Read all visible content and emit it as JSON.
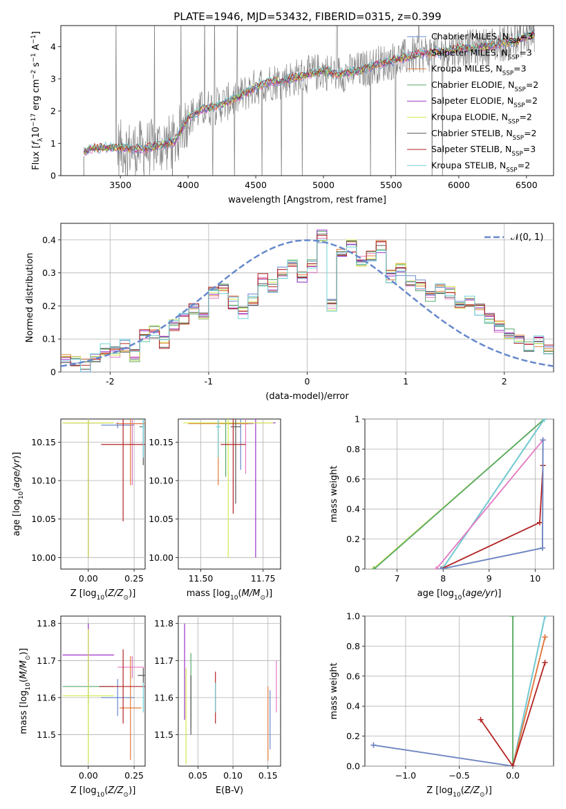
{
  "figure_title": "PLATE=1946, MJD=53432, FIBERID=0315, z=0.399",
  "legend_entries": [
    {
      "model": "Chabrier MILES",
      "n": "3",
      "color": "#6688cc"
    },
    {
      "model": "Salpeter MILES",
      "n": "3",
      "color": "#e377c2"
    },
    {
      "model": "Kroupa MILES",
      "n": "3",
      "color": "#e07b39"
    },
    {
      "model": "Chabrier ELODIE",
      "n": "2",
      "color": "#55a868"
    },
    {
      "model": "Salpeter ELODIE",
      "n": "2",
      "color": "#9b30c8"
    },
    {
      "model": "Kroupa ELODIE",
      "n": "2",
      "color": "#d4e84a"
    },
    {
      "model": "Chabrier STELIB",
      "n": "2",
      "color": "#555555"
    },
    {
      "model": "Salpeter STELIB",
      "n": "3",
      "color": "#b22222"
    },
    {
      "model": "Kroupa STELIB",
      "n": "2",
      "color": "#6fd0d8"
    }
  ],
  "legend_nssp_prefix": "N",
  "legend_nssp_sub": "SSP",
  "chart_data": [
    {
      "id": "spectrum",
      "type": "line",
      "xlabel": "wavelength [Angstrom, rest frame]",
      "ylabel": "Flux [f_λ 10^-17 erg cm^-2 s^-1 A^-1]",
      "xlim": [
        3060,
        6700
      ],
      "ylim": [
        0,
        4.65
      ],
      "xticks": [
        3500,
        4000,
        4500,
        5000,
        5500,
        6000,
        6500
      ],
      "yticks": [
        0,
        1,
        2,
        3,
        4
      ],
      "grid": false,
      "legend": "upper-right",
      "data_color": "#808080",
      "model_continuum": {
        "x": [
          3230,
          3300,
          3400,
          3500,
          3600,
          3700,
          3800,
          3900,
          4000,
          4100,
          4200,
          4300,
          4400,
          4500,
          4600,
          4700,
          4800,
          4900,
          5000,
          5100,
          5200,
          5300,
          5400,
          5500,
          5600,
          5700,
          5800,
          5900,
          6000,
          6100,
          6200,
          6300,
          6400,
          6500,
          6560
        ],
        "y": [
          0.75,
          0.85,
          0.88,
          0.85,
          0.82,
          0.85,
          0.95,
          1.05,
          1.8,
          2.05,
          2.15,
          2.3,
          2.5,
          2.75,
          2.9,
          2.95,
          3.05,
          3.15,
          3.25,
          3.15,
          3.2,
          3.3,
          3.45,
          3.55,
          3.65,
          3.75,
          3.8,
          3.85,
          3.95,
          3.95,
          4.0,
          4.1,
          4.15,
          4.3,
          4.4
        ]
      }
    },
    {
      "id": "residuals",
      "type": "step",
      "xlabel": "(data-model)/error",
      "ylabel": "Normed distribution",
      "xlim": [
        -2.5,
        2.5
      ],
      "ylim": [
        0,
        0.45
      ],
      "xticks": [
        -2,
        -1,
        0,
        1,
        2
      ],
      "yticks": [
        0.0,
        0.1,
        0.2,
        0.3,
        0.4
      ],
      "grid": true,
      "legend": "upper-right",
      "legend_label": "𝒩(0, 1)",
      "gaussian": {
        "mu": 0,
        "sigma": 1,
        "color": "#6688cc"
      },
      "bin_width": 0.1,
      "bin_start": -2.5,
      "hist": [
        0.04,
        0.03,
        0.02,
        0.05,
        0.07,
        0.06,
        0.08,
        0.05,
        0.11,
        0.12,
        0.09,
        0.14,
        0.16,
        0.19,
        0.18,
        0.24,
        0.25,
        0.21,
        0.18,
        0.22,
        0.28,
        0.26,
        0.3,
        0.33,
        0.29,
        0.32,
        0.41,
        0.2,
        0.36,
        0.38,
        0.34,
        0.35,
        0.38,
        0.29,
        0.31,
        0.28,
        0.26,
        0.23,
        0.25,
        0.24,
        0.2,
        0.21,
        0.19,
        0.16,
        0.14,
        0.12,
        0.1,
        0.08,
        0.09,
        0.07
      ]
    },
    {
      "id": "age_vs_Z",
      "type": "errorbar",
      "xlabel": "Z [log10(Z/Z☉)]",
      "ylabel": "age  [log10(age/yr)]",
      "xlim": [
        -0.15,
        0.31
      ],
      "ylim": [
        9.985,
        10.18
      ],
      "xticks": [
        0.0,
        0.25
      ],
      "xtick_labels": [
        "0.00",
        "0.25"
      ],
      "yticks": [
        10.0,
        10.05,
        10.1,
        10.15
      ],
      "yticks_labels": [
        "10.00",
        "10.05",
        "10.10",
        "10.15"
      ],
      "grid": true,
      "points": [
        {
          "model": "Chabrier MILES",
          "x": 0.16,
          "y": 10.172,
          "xerr": 0.09,
          "yerr": 0.004
        },
        {
          "model": "Salpeter MILES",
          "x": 0.24,
          "y": 10.174,
          "xerr": 0.07,
          "yerr": 0.08
        },
        {
          "model": "Kroupa MILES",
          "x": 0.23,
          "y": 10.174,
          "xerr": 0.08,
          "yerr": 0.08
        },
        {
          "model": "Chabrier ELODIE",
          "x": 0.0,
          "y": 10.175,
          "xerr": 0.12,
          "yerr": 0.175
        },
        {
          "model": "Salpeter ELODIE",
          "x": 0.0,
          "y": 10.175,
          "xerr": 0.14,
          "yerr": 0.175
        },
        {
          "model": "Kroupa ELODIE",
          "x": 0.0,
          "y": 10.175,
          "xerr": 0.14,
          "yerr": 0.175
        },
        {
          "model": "Chabrier STELIB",
          "x": 0.3,
          "y": 10.17,
          "xerr": 0.02,
          "yerr": 0.05
        },
        {
          "model": "Salpeter STELIB",
          "x": 0.19,
          "y": 10.147,
          "xerr": 0.12,
          "yerr": 0.1
        },
        {
          "model": "Kroupa STELIB",
          "x": 0.3,
          "y": 10.17,
          "xerr": 0.01,
          "yerr": 0.04
        }
      ]
    },
    {
      "id": "age_vs_mass",
      "type": "errorbar",
      "xlabel": "mass [log10(M/M☉)]",
      "ylabel": "",
      "xlim": [
        11.41,
        11.82
      ],
      "ylim": [
        9.985,
        10.18
      ],
      "xticks": [
        11.5,
        11.75
      ],
      "xtick_labels": [
        "11.50",
        "11.75"
      ],
      "yticks": [
        10.0,
        10.05,
        10.1,
        10.15
      ],
      "yticks_labels": [
        "10.00",
        "10.05",
        "10.10",
        "10.15"
      ],
      "grid": true,
      "points": [
        {
          "model": "Chabrier MILES",
          "x": 11.66,
          "y": 10.174,
          "xerr": 0.05,
          "yerr": 0.06
        },
        {
          "model": "Salpeter MILES",
          "x": 11.68,
          "y": 10.174,
          "xerr": 0.03,
          "yerr": 0.065
        },
        {
          "model": "Kroupa MILES",
          "x": 11.57,
          "y": 10.174,
          "xerr": 0.12,
          "yerr": 0.08
        },
        {
          "model": "Chabrier ELODIE",
          "x": 11.6,
          "y": 10.175,
          "xerr": 0.12,
          "yerr": 0.07
        },
        {
          "model": "Salpeter ELODIE",
          "x": 11.72,
          "y": 10.175,
          "xerr": 0.08,
          "yerr": 0.175
        },
        {
          "model": "Kroupa ELODIE",
          "x": 11.61,
          "y": 10.175,
          "xerr": 0.18,
          "yerr": 0.175
        },
        {
          "model": "Chabrier STELIB",
          "x": 11.64,
          "y": 10.17,
          "xerr": 0.02,
          "yerr": 0.1
        },
        {
          "model": "Salpeter STELIB",
          "x": 11.63,
          "y": 10.147,
          "xerr": 0.05,
          "yerr": 0.09
        },
        {
          "model": "Kroupa STELIB",
          "x": 11.57,
          "y": 10.17,
          "xerr": 0.01,
          "yerr": 0.04
        }
      ]
    },
    {
      "id": "weight_vs_age",
      "type": "line",
      "xlabel": "age  [log10(age/yr)]",
      "ylabel": "mass weight",
      "xlim": [
        6.3,
        10.4
      ],
      "ylim": [
        0,
        1.0
      ],
      "xticks": [
        7,
        8,
        9,
        10
      ],
      "yticks": [
        0.0,
        0.2,
        0.4,
        0.6,
        0.8,
        1.0
      ],
      "grid": true,
      "series": [
        {
          "model": "Kroupa ELODIE",
          "x": [
            6.48,
            10.2
          ],
          "y": [
            0.0,
            1.0
          ]
        },
        {
          "model": "Chabrier ELODIE",
          "x": [
            6.5,
            10.2
          ],
          "y": [
            0.0,
            1.0
          ]
        },
        {
          "model": "Chabrier STELIB",
          "x": [
            7.98,
            10.2
          ],
          "y": [
            0.0,
            1.0
          ]
        },
        {
          "model": "Kroupa STELIB",
          "x": [
            7.98,
            10.2
          ],
          "y": [
            0.0,
            1.0
          ]
        },
        {
          "model": "Salpeter MILES",
          "x": [
            7.85,
            10.17
          ],
          "y": [
            0.0,
            0.86
          ]
        },
        {
          "model": "Salpeter STELIB",
          "x": [
            7.95,
            10.1,
            10.17
          ],
          "y": [
            0.0,
            0.31,
            0.69
          ]
        },
        {
          "model": "Kroupa MILES",
          "x": [
            7.95,
            10.16,
            10.17
          ],
          "y": [
            0.0,
            0.14,
            0.86
          ]
        },
        {
          "model": "Chabrier MILES",
          "x": [
            7.95,
            10.16,
            10.17
          ],
          "y": [
            0.0,
            0.14,
            0.86
          ]
        }
      ]
    },
    {
      "id": "mass_vs_Z",
      "type": "errorbar",
      "xlabel": "Z [log10(Z/Z☉)]",
      "ylabel": "mass [log10(M/M☉)]",
      "xlim": [
        -0.15,
        0.31
      ],
      "ylim": [
        11.415,
        11.82
      ],
      "xticks": [
        0.0,
        0.25
      ],
      "xtick_labels": [
        "0.00",
        "0.25"
      ],
      "yticks": [
        11.5,
        11.6,
        11.7,
        11.8
      ],
      "yticks_labels": [
        "11.5",
        "11.6",
        "11.7",
        "11.8"
      ],
      "grid": true,
      "points": [
        {
          "model": "Chabrier MILES",
          "x": 0.16,
          "y": 11.6,
          "xerr": 0.09,
          "yerr": 0.05
        },
        {
          "model": "Salpeter MILES",
          "x": 0.24,
          "y": 11.682,
          "xerr": 0.08,
          "yerr": 0.03
        },
        {
          "model": "Kroupa MILES",
          "x": 0.23,
          "y": 11.572,
          "xerr": 0.06,
          "yerr": 0.14
        },
        {
          "model": "Chabrier ELODIE",
          "x": 0.0,
          "y": 11.63,
          "xerr": 0.14,
          "yerr": 0.05
        },
        {
          "model": "Salpeter ELODIE",
          "x": 0.0,
          "y": 11.715,
          "xerr": 0.14,
          "yerr": 0.085
        },
        {
          "model": "Kroupa ELODIE",
          "x": 0.0,
          "y": 11.605,
          "xerr": 0.14,
          "yerr": 0.18
        },
        {
          "model": "Chabrier STELIB",
          "x": 0.3,
          "y": 11.66,
          "xerr": 0.03,
          "yerr": 0.02
        },
        {
          "model": "Salpeter STELIB",
          "x": 0.19,
          "y": 11.63,
          "xerr": 0.13,
          "yerr": 0.1
        },
        {
          "model": "Kroupa STELIB",
          "x": 0.3,
          "y": 11.6,
          "xerr": 0.005,
          "yerr": 0.04
        }
      ]
    },
    {
      "id": "mass_vs_ebv",
      "type": "errorbar",
      "xlabel": "E(B-V)",
      "ylabel": "",
      "xlim": [
        0.022,
        0.168
      ],
      "ylim": [
        11.415,
        11.82
      ],
      "xticks": [
        0.05,
        0.1,
        0.15
      ],
      "xtick_labels": [
        "0.05",
        "0.10",
        "0.15"
      ],
      "yticks": [
        11.5,
        11.6,
        11.7,
        11.8
      ],
      "yticks_labels": [
        "11.5",
        "11.6",
        "11.7",
        "11.8"
      ],
      "grid": true,
      "points": [
        {
          "model": "Chabrier MILES",
          "x": 0.153,
          "y": 11.54,
          "xerr": 0,
          "yerr": 0.08
        },
        {
          "model": "Salpeter MILES",
          "x": 0.162,
          "y": 11.63,
          "xerr": 0,
          "yerr": 0.07
        },
        {
          "model": "Kroupa MILES",
          "x": 0.15,
          "y": 11.53,
          "xerr": 0,
          "yerr": 0.1
        },
        {
          "model": "Chabrier ELODIE",
          "x": 0.04,
          "y": 11.62,
          "xerr": 0,
          "yerr": 0.1
        },
        {
          "model": "Salpeter ELODIE",
          "x": 0.031,
          "y": 11.67,
          "xerr": 0,
          "yerr": 0.13
        },
        {
          "model": "Kroupa ELODIE",
          "x": 0.033,
          "y": 11.55,
          "xerr": 0,
          "yerr": 0.13
        },
        {
          "model": "Chabrier STELIB",
          "x": 0.04,
          "y": 11.58,
          "xerr": 0,
          "yerr": 0.08
        },
        {
          "model": "Salpeter STELIB",
          "x": 0.075,
          "y": 11.6,
          "xerr": 0,
          "yerr": 0.07
        },
        {
          "model": "Kroupa STELIB",
          "x": 0.075,
          "y": 11.6,
          "xerr": 0,
          "yerr": 0.04
        }
      ]
    },
    {
      "id": "weight_vs_Z",
      "type": "line",
      "xlabel": "Z [log10(Z/Z☉)]",
      "ylabel": "mass weight",
      "xlim": [
        -1.38,
        0.38
      ],
      "ylim": [
        0,
        1.0
      ],
      "xticks": [
        -1.0,
        -0.5,
        0.0
      ],
      "xtick_labels": [
        "−1.0",
        "−0.5",
        "0.0"
      ],
      "yticks": [
        0.0,
        0.2,
        0.4,
        0.6,
        0.8,
        1.0
      ],
      "yticks_labels": [
        "0.0",
        "0.2",
        "0.4",
        "0.6",
        "0.8",
        "1.0"
      ],
      "grid": true,
      "series": [
        {
          "model": "Kroupa ELODIE",
          "x": [
            0.0,
            0.0
          ],
          "y": [
            0.0,
            1.0
          ]
        },
        {
          "model": "Chabrier ELODIE",
          "x": [
            0.0,
            0.0
          ],
          "y": [
            0.0,
            1.0
          ]
        },
        {
          "model": "Chabrier STELIB",
          "x": [
            0.0,
            0.3
          ],
          "y": [
            0.0,
            1.0
          ]
        },
        {
          "model": "Kroupa STELIB",
          "x": [
            0.0,
            0.3
          ],
          "y": [
            0.0,
            1.0
          ]
        },
        {
          "model": "Salpeter MILES",
          "x": [
            0.0,
            0.3
          ],
          "y": [
            0.0,
            0.86
          ]
        },
        {
          "model": "Kroupa MILES",
          "x": [
            -1.3,
            0.0,
            0.3
          ],
          "y": [
            0.14,
            0.0,
            0.86
          ]
        },
        {
          "model": "Chabrier MILES",
          "x": [
            -1.3,
            0.0
          ],
          "y": [
            0.14,
            0.0
          ]
        },
        {
          "model": "Salpeter STELIB",
          "x": [
            -0.3,
            0.0,
            0.3
          ],
          "y": [
            0.31,
            0.0,
            0.69
          ]
        }
      ]
    }
  ]
}
